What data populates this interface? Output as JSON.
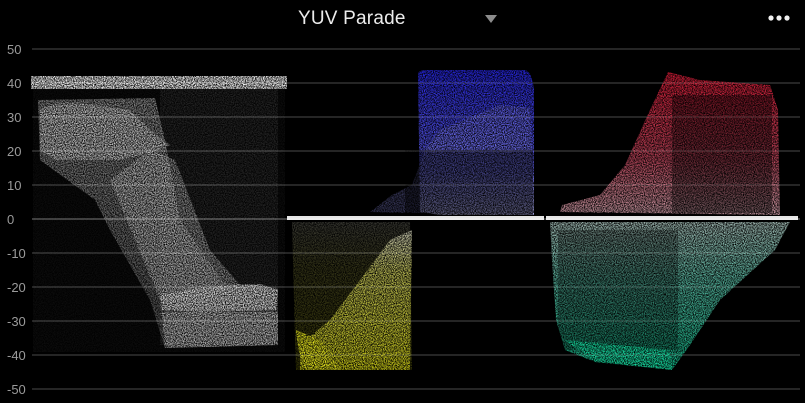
{
  "header": {
    "title": "YUV Parade",
    "dropdown_icon": "chevron-down-icon",
    "menu_icon": "more-horizontal-icon"
  },
  "scope": {
    "y_ticks": [
      {
        "value": 50,
        "label": "50"
      },
      {
        "value": 40,
        "label": "40"
      },
      {
        "value": 30,
        "label": "30"
      },
      {
        "value": 20,
        "label": "20"
      },
      {
        "value": 10,
        "label": "10"
      },
      {
        "value": 0,
        "label": "0"
      },
      {
        "value": -10,
        "label": "-10"
      },
      {
        "value": -20,
        "label": "-20"
      },
      {
        "value": -30,
        "label": "-30"
      },
      {
        "value": -40,
        "label": "-40"
      },
      {
        "value": -50,
        "label": "-50"
      }
    ],
    "channels": [
      {
        "id": "luma",
        "color": "#ffffff"
      },
      {
        "id": "u",
        "color_pos": "#3a3aff",
        "color_neg": "#e6e619"
      },
      {
        "id": "v",
        "color_pos": "#ff2a4a",
        "color_neg": "#20e0b0"
      }
    ]
  }
}
